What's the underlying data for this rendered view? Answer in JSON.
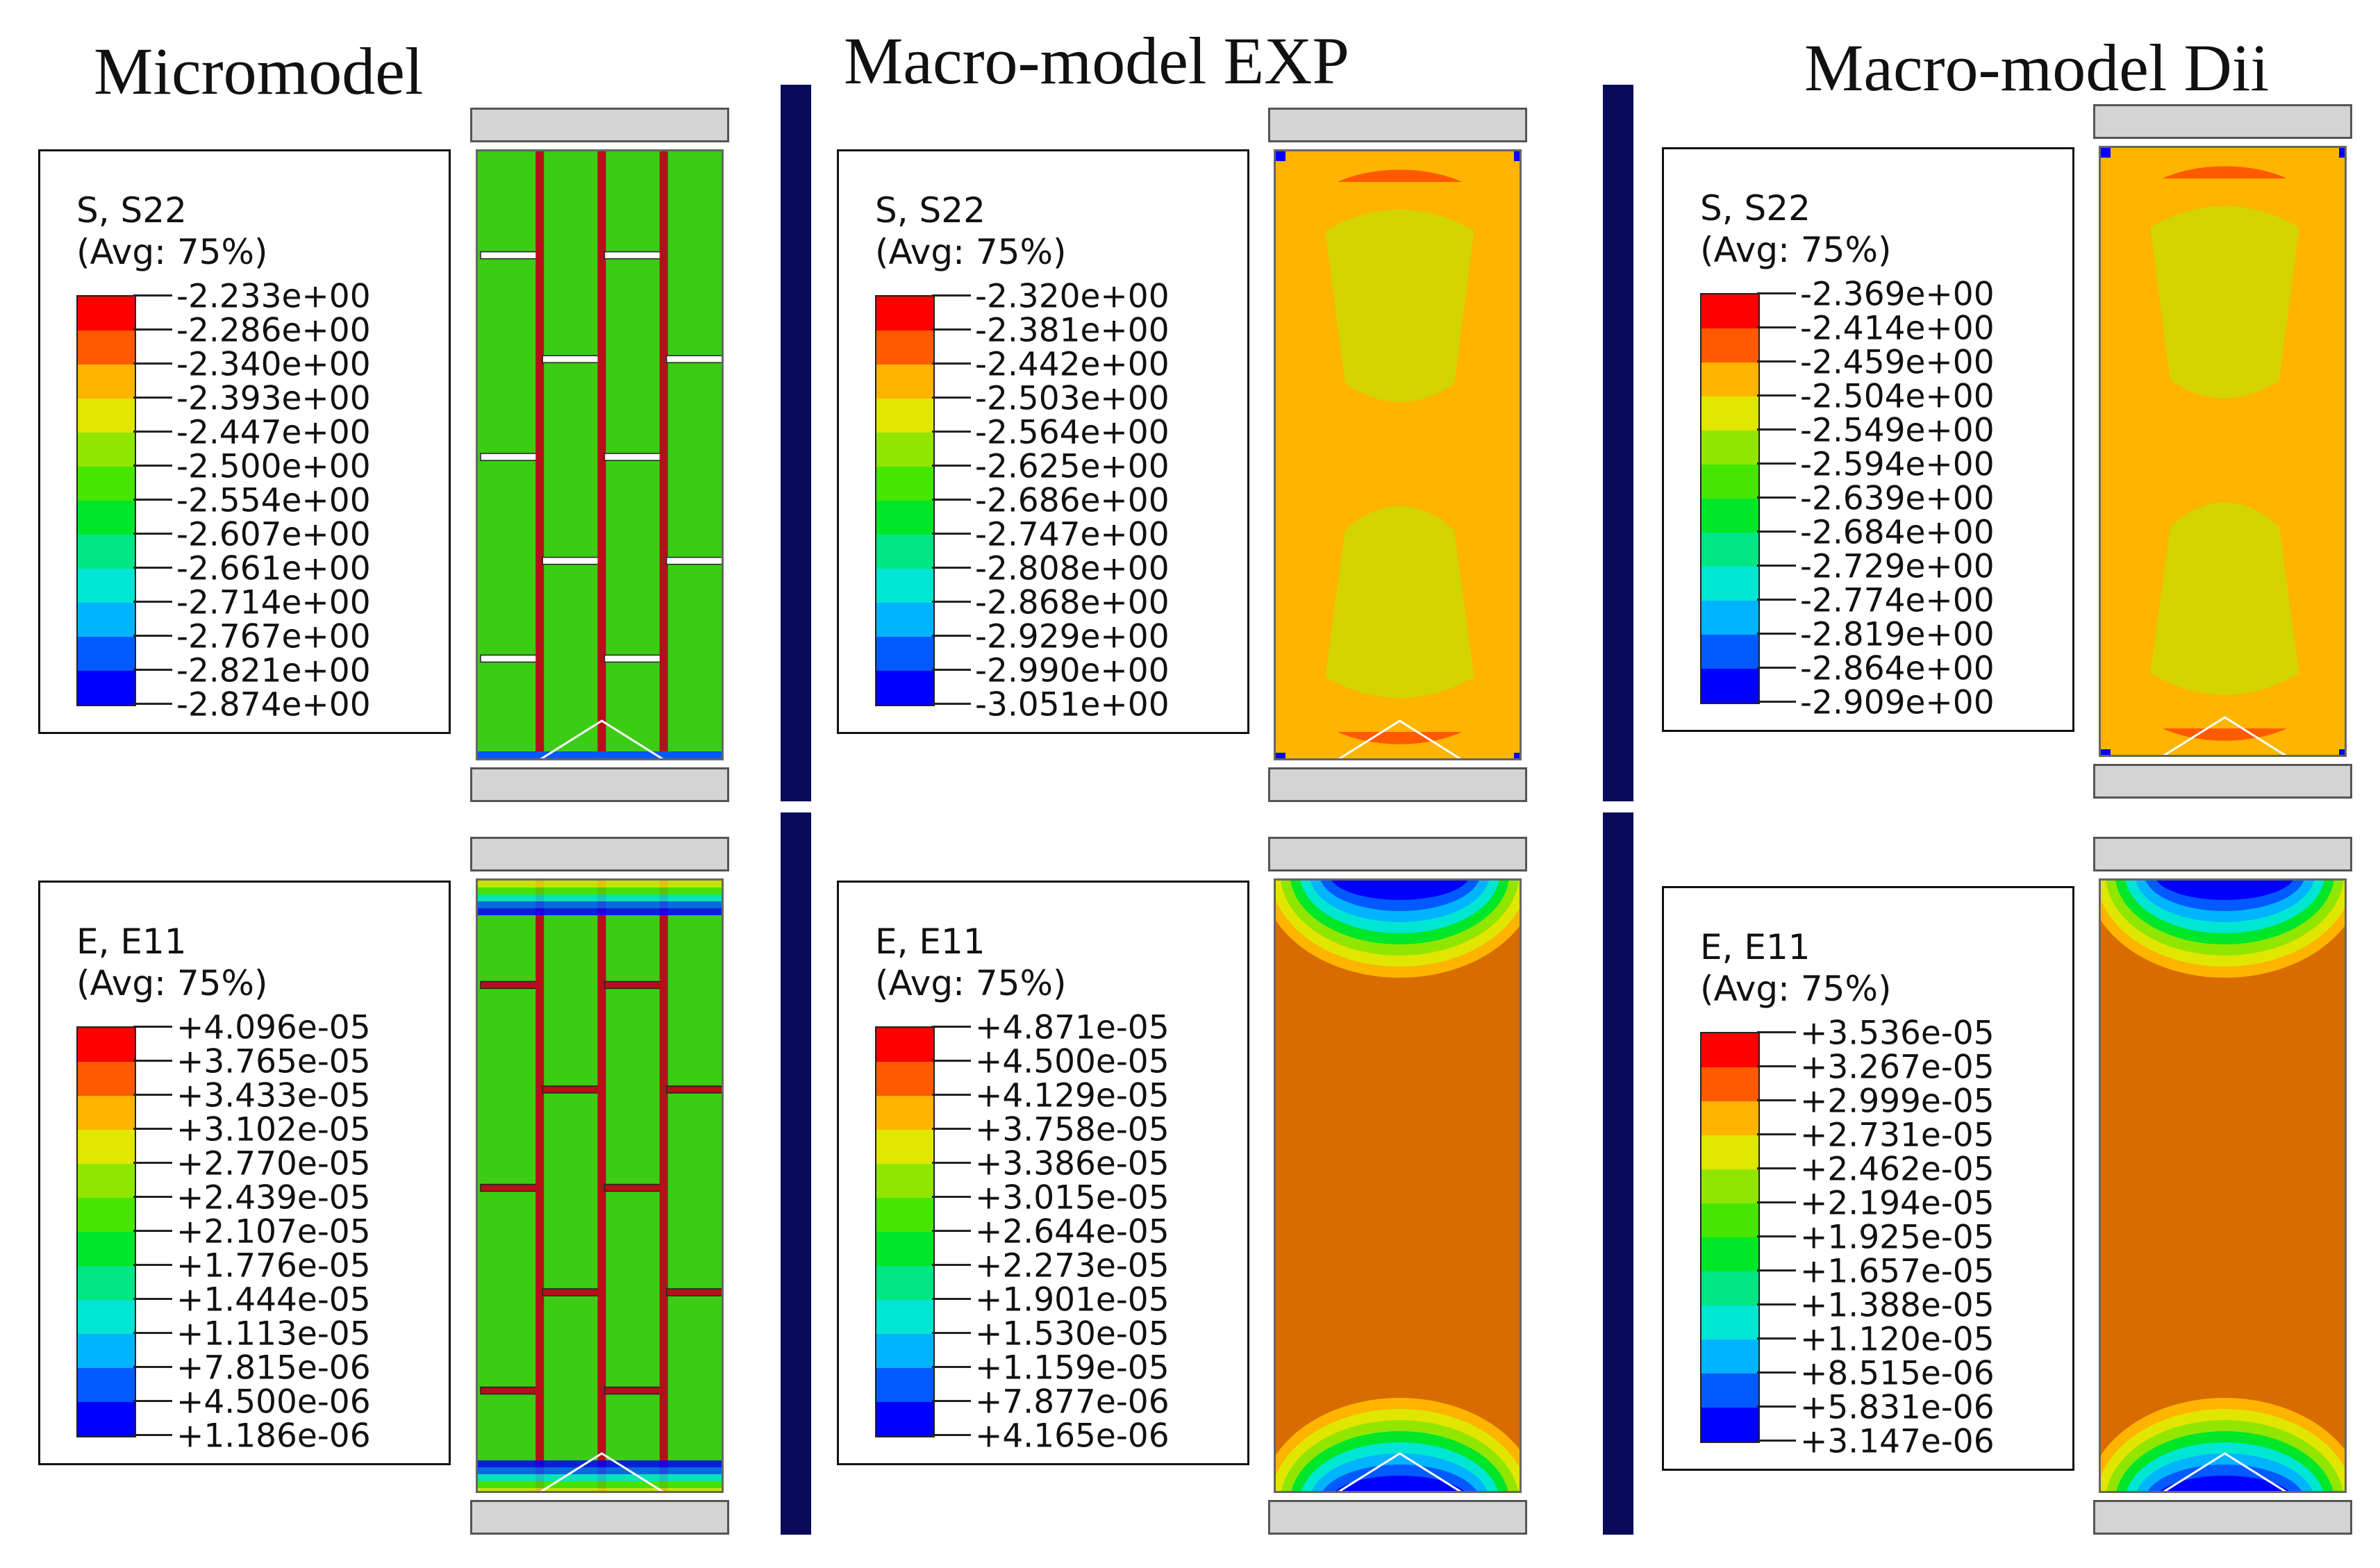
{
  "columns": [
    {
      "title": "Micromodel"
    },
    {
      "title": "Macro-model EXP"
    },
    {
      "title": "Macro-model Dii"
    }
  ],
  "colors": {
    "divider": "#0a0a5a",
    "scale": [
      "#ff0000",
      "#ff5a00",
      "#ffb400",
      "#e1e600",
      "#91e600",
      "#46e600",
      "#00e628",
      "#00e682",
      "#00e6d2",
      "#00b4ff",
      "#005aff",
      "#0000ff"
    ],
    "brick_green": "#3ccc14",
    "mortar_red": "#b5101a",
    "macro_orange": "#d86c00",
    "macro_yellow": "#d3d400"
  },
  "legends": {
    "s_micro": {
      "title": "S, S22",
      "avg": "(Avg: 75%)",
      "values": [
        "-2.233e+00",
        "-2.286e+00",
        "-2.340e+00",
        "-2.393e+00",
        "-2.447e+00",
        "-2.500e+00",
        "-2.554e+00",
        "-2.607e+00",
        "-2.661e+00",
        "-2.714e+00",
        "-2.767e+00",
        "-2.821e+00",
        "-2.874e+00"
      ]
    },
    "s_exp": {
      "title": "S, S22",
      "avg": "(Avg: 75%)",
      "values": [
        "-2.320e+00",
        "-2.381e+00",
        "-2.442e+00",
        "-2.503e+00",
        "-2.564e+00",
        "-2.625e+00",
        "-2.686e+00",
        "-2.747e+00",
        "-2.808e+00",
        "-2.868e+00",
        "-2.929e+00",
        "-2.990e+00",
        "-3.051e+00"
      ]
    },
    "s_dii": {
      "title": "S, S22",
      "avg": "(Avg: 75%)",
      "values": [
        "-2.369e+00",
        "-2.414e+00",
        "-2.459e+00",
        "-2.504e+00",
        "-2.549e+00",
        "-2.594e+00",
        "-2.639e+00",
        "-2.684e+00",
        "-2.729e+00",
        "-2.774e+00",
        "-2.819e+00",
        "-2.864e+00",
        "-2.909e+00"
      ]
    },
    "e_micro": {
      "title": "E, E11",
      "avg": "(Avg: 75%)",
      "values": [
        "+4.096e-05",
        "+3.765e-05",
        "+3.433e-05",
        "+3.102e-05",
        "+2.770e-05",
        "+2.439e-05",
        "+2.107e-05",
        "+1.776e-05",
        "+1.444e-05",
        "+1.113e-05",
        "+7.815e-06",
        "+4.500e-06",
        "+1.186e-06"
      ]
    },
    "e_exp": {
      "title": "E, E11",
      "avg": "(Avg: 75%)",
      "values": [
        "+4.871e-05",
        "+4.500e-05",
        "+4.129e-05",
        "+3.758e-05",
        "+3.386e-05",
        "+3.015e-05",
        "+2.644e-05",
        "+2.273e-05",
        "+1.901e-05",
        "+1.530e-05",
        "+1.159e-05",
        "+7.877e-06",
        "+4.165e-06"
      ]
    },
    "e_dii": {
      "title": "E, E11",
      "avg": "(Avg: 75%)",
      "values": [
        "+3.536e-05",
        "+3.267e-05",
        "+2.999e-05",
        "+2.731e-05",
        "+2.462e-05",
        "+2.194e-05",
        "+1.925e-05",
        "+1.657e-05",
        "+1.388e-05",
        "+1.120e-05",
        "+8.515e-06",
        "+5.831e-06",
        "+3.147e-06"
      ]
    }
  }
}
